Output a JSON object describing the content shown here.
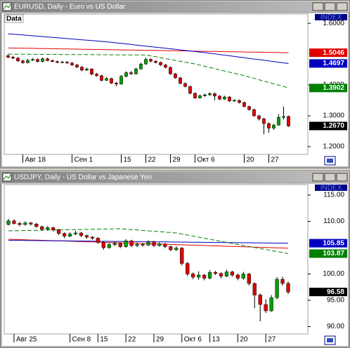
{
  "chart_data": [
    {
      "type": "candlestick",
      "title": "EURUSD, Daily - Euro vs US Dollar",
      "panel_label": "Data",
      "index_label": "INDEX",
      "up_color": "#00a000",
      "down_color": "#e00000",
      "categories": [
        null,
        null,
        null,
        "Авг 18",
        null,
        null,
        null,
        null,
        null,
        null,
        null,
        null,
        null,
        "Сен 1",
        null,
        null,
        null,
        null,
        null,
        null,
        null,
        null,
        null,
        "15",
        null,
        null,
        null,
        null,
        "22",
        null,
        null,
        null,
        null,
        "29",
        null,
        null,
        null,
        null,
        "Окт 6",
        null,
        null,
        null,
        null,
        null,
        null,
        null,
        null,
        null,
        "20",
        null,
        null,
        null,
        null,
        "27",
        null,
        null,
        null,
        null
      ],
      "open": [
        1.495,
        1.49,
        1.487,
        1.478,
        1.472,
        1.48,
        1.483,
        1.476,
        1.485,
        1.479,
        1.476,
        1.473,
        1.474,
        1.471,
        1.465,
        1.458,
        1.448,
        1.452,
        1.435,
        1.43,
        1.415,
        1.421,
        1.406,
        1.403,
        1.428,
        1.44,
        1.436,
        1.452,
        1.468,
        1.483,
        1.477,
        1.473,
        1.465,
        1.457,
        1.436,
        1.423,
        1.405,
        1.395,
        1.373,
        1.358,
        1.365,
        1.368,
        1.372,
        1.364,
        1.354,
        1.361,
        1.348,
        1.35,
        1.343,
        1.33,
        1.32,
        1.3,
        1.29,
        1.275,
        1.26,
        1.27,
        1.295,
        1.298
      ],
      "high": [
        1.499,
        1.494,
        1.49,
        1.482,
        1.484,
        1.487,
        1.486,
        1.489,
        1.488,
        1.482,
        1.479,
        1.478,
        1.477,
        1.474,
        1.468,
        1.461,
        1.456,
        1.454,
        1.439,
        1.433,
        1.425,
        1.423,
        1.41,
        1.432,
        1.444,
        1.445,
        1.456,
        1.472,
        1.488,
        1.486,
        1.48,
        1.476,
        1.468,
        1.46,
        1.439,
        1.426,
        1.408,
        1.398,
        1.376,
        1.369,
        1.372,
        1.376,
        1.375,
        1.367,
        1.365,
        1.364,
        1.354,
        1.353,
        1.346,
        1.333,
        1.323,
        1.303,
        1.293,
        1.278,
        1.274,
        1.305,
        1.33,
        1.301
      ],
      "low": [
        1.487,
        1.484,
        1.475,
        1.469,
        1.47,
        1.478,
        1.473,
        1.474,
        1.477,
        1.474,
        1.47,
        1.471,
        1.469,
        1.462,
        1.455,
        1.445,
        1.446,
        1.432,
        1.427,
        1.412,
        1.413,
        1.403,
        1.396,
        1.401,
        1.425,
        1.433,
        1.434,
        1.45,
        1.466,
        1.474,
        1.47,
        1.462,
        1.454,
        1.433,
        1.42,
        1.402,
        1.392,
        1.37,
        1.355,
        1.356,
        1.362,
        1.365,
        1.35,
        1.351,
        1.352,
        1.345,
        1.346,
        1.34,
        1.327,
        1.317,
        1.297,
        1.285,
        1.24,
        1.245,
        1.255,
        1.268,
        1.288,
        1.264
      ],
      "close": [
        1.49,
        1.487,
        1.478,
        1.472,
        1.48,
        1.483,
        1.476,
        1.485,
        1.479,
        1.476,
        1.473,
        1.474,
        1.471,
        1.465,
        1.458,
        1.448,
        1.452,
        1.435,
        1.43,
        1.415,
        1.421,
        1.406,
        1.403,
        1.428,
        1.44,
        1.436,
        1.452,
        1.468,
        1.483,
        1.477,
        1.473,
        1.465,
        1.457,
        1.436,
        1.423,
        1.405,
        1.395,
        1.373,
        1.358,
        1.365,
        1.368,
        1.372,
        1.364,
        1.354,
        1.361,
        1.348,
        1.35,
        1.343,
        1.33,
        1.32,
        1.3,
        1.29,
        1.275,
        1.26,
        1.27,
        1.295,
        1.298,
        1.267
      ],
      "series": [
        {
          "color": "#e00000",
          "style": "solid",
          "values": [
            1.52,
            1.5197,
            1.5195,
            1.5192,
            1.5189,
            1.5187,
            1.5184,
            1.5181,
            1.5178,
            1.5176,
            1.5173,
            1.517,
            1.5168,
            1.5165,
            1.5162,
            1.5159,
            1.5157,
            1.5154,
            1.5151,
            1.5149,
            1.5146,
            1.5143,
            1.5141,
            1.5138,
            1.5135,
            1.5132,
            1.513,
            1.5127,
            1.5124,
            1.5122,
            1.5119,
            1.5116,
            1.5114,
            1.5111,
            1.5108,
            1.5105,
            1.5103,
            1.51,
            1.5097,
            1.5095,
            1.5092,
            1.5089,
            1.5087,
            1.5084,
            1.5081,
            1.5078,
            1.5076,
            1.5073,
            1.507,
            1.5068,
            1.5065,
            1.5062,
            1.5059,
            1.5057,
            1.5054,
            1.5051,
            1.5049,
            1.5046
          ]
        },
        {
          "color": "#0000c0",
          "style": "solid",
          "values": [
            1.566,
            1.5647,
            1.5634,
            1.5621,
            1.5608,
            1.5595,
            1.5582,
            1.5569,
            1.5556,
            1.5543,
            1.553,
            1.5517,
            1.5504,
            1.5491,
            1.5478,
            1.5465,
            1.5452,
            1.5439,
            1.5426,
            1.5413,
            1.54,
            1.5383,
            1.5365,
            1.5348,
            1.533,
            1.5313,
            1.5295,
            1.5278,
            1.526,
            1.5243,
            1.5225,
            1.5208,
            1.519,
            1.5173,
            1.5155,
            1.5138,
            1.512,
            1.5103,
            1.5085,
            1.5068,
            1.505,
            1.5029,
            1.5008,
            1.4988,
            1.4967,
            1.4946,
            1.4925,
            1.4904,
            1.4884,
            1.4863,
            1.4842,
            1.4821,
            1.48,
            1.478,
            1.4759,
            1.4738,
            1.4717,
            1.4697
          ]
        },
        {
          "color": "#008000",
          "style": "dashed",
          "values": [
            1.5,
            1.4999,
            1.4998,
            1.4997,
            1.4996,
            1.4995,
            1.4994,
            1.4993,
            1.4992,
            1.4991,
            1.499,
            1.4989,
            1.4988,
            1.4987,
            1.4986,
            1.4985,
            1.4984,
            1.4983,
            1.4982,
            1.4981,
            1.498,
            1.4979,
            1.4978,
            1.4977,
            1.4976,
            1.4975,
            1.4974,
            1.4973,
            1.4972,
            1.4943,
            1.4914,
            1.4885,
            1.4856,
            1.4827,
            1.4798,
            1.4769,
            1.474,
            1.4711,
            1.4682,
            1.4644,
            1.4606,
            1.4568,
            1.453,
            1.4492,
            1.4454,
            1.4416,
            1.4378,
            1.434,
            1.4302,
            1.4258,
            1.4214,
            1.417,
            1.4126,
            1.4082,
            1.4038,
            1.3994,
            1.395,
            1.3902
          ]
        }
      ],
      "price_tags": [
        {
          "value": 1.5046,
          "label": "1.5046",
          "color": "#e00000"
        },
        {
          "value": 1.4697,
          "label": "1.4697",
          "color": "#0000c0"
        },
        {
          "value": 1.3902,
          "label": "1.3902",
          "color": "#008000"
        },
        {
          "value": 1.267,
          "label": "1.2670",
          "color": "#000000"
        }
      ],
      "ylim": [
        1.175,
        1.63
      ],
      "yticks": [
        {
          "value": 1.2,
          "label": "1.2000"
        },
        {
          "value": 1.3,
          "label": "1.3000"
        },
        {
          "value": 1.4,
          "label": "1.4000"
        },
        {
          "value": 1.6,
          "label": "1.6000"
        }
      ]
    },
    {
      "type": "candlestick",
      "title": "USDJPY, Daily - US Dollar vs Japanese Yen",
      "index_label": "INDEX",
      "up_color": "#00a000",
      "down_color": "#e00000",
      "categories": [
        null,
        "Авг 25",
        null,
        null,
        null,
        null,
        null,
        null,
        null,
        null,
        null,
        "Сен 8",
        null,
        null,
        null,
        null,
        "15",
        null,
        null,
        null,
        null,
        "22",
        null,
        null,
        null,
        null,
        "29",
        null,
        null,
        null,
        null,
        "Окт 6",
        null,
        null,
        null,
        null,
        "13",
        null,
        null,
        null,
        null,
        "20",
        null,
        null,
        null,
        null,
        "27",
        null,
        null,
        null,
        null
      ],
      "open": [
        109.4,
        110.1,
        109.6,
        109.4,
        109.7,
        109.5,
        109.0,
        108.5,
        108.8,
        108.4,
        107.7,
        107.2,
        107.6,
        107.8,
        107.3,
        107.0,
        106.8,
        106.0,
        105.0,
        105.6,
        105.8,
        105.2,
        106.3,
        105.4,
        105.6,
        105.5,
        106.1,
        105.4,
        105.7,
        105.2,
        104.6,
        104.9,
        102.0,
        100.0,
        99.4,
        99.8,
        99.2,
        100.3,
        100.1,
        99.6,
        100.4,
        99.8,
        99.2,
        100.0,
        98.2,
        96.0,
        94.2,
        93.0,
        95.5,
        99.0,
        98.2
      ],
      "high": [
        110.5,
        110.4,
        109.9,
        110.0,
        109.9,
        109.7,
        109.2,
        109.1,
        109.0,
        108.6,
        107.9,
        107.9,
        108.2,
        108.0,
        107.5,
        107.2,
        107.0,
        106.2,
        105.9,
        106.2,
        106.0,
        106.6,
        106.5,
        106.0,
        105.9,
        106.4,
        106.3,
        106.0,
        105.9,
        105.4,
        105.3,
        105.1,
        102.3,
        100.3,
        100.5,
        100.0,
        100.7,
        100.6,
        100.3,
        100.8,
        100.6,
        100.1,
        100.4,
        100.2,
        98.4,
        96.3,
        95.2,
        96.0,
        99.4,
        99.5,
        98.6
      ],
      "low": [
        109.2,
        109.4,
        109.1,
        109.2,
        109.2,
        108.8,
        108.2,
        108.3,
        108.1,
        107.4,
        106.8,
        107.0,
        107.4,
        107.0,
        106.7,
        106.5,
        105.7,
        104.6,
        104.8,
        105.3,
        104.9,
        105.0,
        105.1,
        105.1,
        105.2,
        105.3,
        105.1,
        105.2,
        104.9,
        104.3,
        104.4,
        101.6,
        99.6,
        99.0,
        98.9,
        98.8,
        99.0,
        99.8,
        99.2,
        99.4,
        99.5,
        98.8,
        98.9,
        97.8,
        93.5,
        91.0,
        92.6,
        92.8,
        95.2,
        97.8,
        96.2
      ],
      "close": [
        110.1,
        109.6,
        109.4,
        109.7,
        109.5,
        109.0,
        108.5,
        108.8,
        108.4,
        107.7,
        107.2,
        107.6,
        107.8,
        107.3,
        107.0,
        106.8,
        106.0,
        105.0,
        105.6,
        105.8,
        105.2,
        106.3,
        105.4,
        105.6,
        105.5,
        106.1,
        105.4,
        105.7,
        105.2,
        104.6,
        104.9,
        102.0,
        100.0,
        99.4,
        99.8,
        99.2,
        100.3,
        100.1,
        99.6,
        100.4,
        99.8,
        99.2,
        100.0,
        98.2,
        96.0,
        94.2,
        93.0,
        95.5,
        99.0,
        98.2,
        96.58
      ],
      "series": [
        {
          "color": "#e00000",
          "style": "solid",
          "values": [
            106.6,
            106.57,
            106.53,
            106.5,
            106.46,
            106.43,
            106.4,
            106.36,
            106.33,
            106.29,
            106.26,
            106.23,
            106.19,
            106.16,
            106.12,
            106.09,
            106.06,
            106.02,
            105.99,
            105.95,
            105.92,
            105.89,
            105.85,
            105.82,
            105.78,
            105.75,
            105.72,
            105.68,
            105.65,
            105.61,
            105.58,
            105.55,
            105.51,
            105.48,
            105.44,
            105.41,
            105.38,
            105.34,
            105.31,
            105.27,
            105.24,
            105.21,
            105.17,
            105.14,
            105.1,
            105.07,
            105.04,
            105.0,
            104.97,
            104.93,
            104.9
          ]
        },
        {
          "color": "#0000c0",
          "style": "solid",
          "values": [
            106.4,
            106.39,
            106.38,
            106.37,
            106.36,
            106.35,
            106.33,
            106.32,
            106.31,
            106.3,
            106.29,
            106.28,
            106.27,
            106.26,
            106.25,
            106.24,
            106.22,
            106.21,
            106.2,
            106.19,
            106.18,
            106.17,
            106.16,
            106.15,
            106.14,
            106.13,
            106.11,
            106.1,
            106.09,
            106.08,
            106.07,
            106.06,
            106.05,
            106.04,
            106.03,
            106.02,
            106.0,
            105.99,
            105.98,
            105.97,
            105.96,
            105.95,
            105.94,
            105.93,
            105.92,
            105.91,
            105.89,
            105.88,
            105.87,
            105.86,
            105.85
          ]
        },
        {
          "color": "#008000",
          "style": "dashed",
          "values": [
            108.2,
            108.22,
            108.24,
            108.26,
            108.28,
            108.3,
            108.32,
            108.34,
            108.36,
            108.38,
            108.4,
            108.42,
            108.44,
            108.46,
            108.48,
            108.5,
            108.52,
            108.54,
            108.56,
            108.58,
            108.6,
            108.52,
            108.44,
            108.36,
            108.28,
            108.2,
            108.12,
            108.04,
            107.96,
            107.88,
            107.8,
            107.6,
            107.4,
            107.2,
            107.0,
            106.8,
            106.6,
            106.4,
            106.2,
            106.0,
            105.8,
            105.61,
            105.41,
            105.22,
            105.03,
            104.84,
            104.64,
            104.45,
            104.26,
            104.06,
            103.87
          ]
        }
      ],
      "price_tags": [
        {
          "value": 105.85,
          "label": "105.85",
          "color": "#0000c0"
        },
        {
          "value": 103.87,
          "label": "103.87",
          "color": "#008000"
        },
        {
          "value": 96.58,
          "label": "96.58",
          "color": "#000000"
        }
      ],
      "ylim": [
        88.6,
        117.0
      ],
      "yticks": [
        {
          "value": 90,
          "label": "90.00"
        },
        {
          "value": 95,
          "label": "95.00"
        },
        {
          "value": 100,
          "label": "100.00"
        },
        {
          "value": 110,
          "label": "110.00"
        },
        {
          "value": 115,
          "label": "115.00"
        }
      ]
    }
  ]
}
